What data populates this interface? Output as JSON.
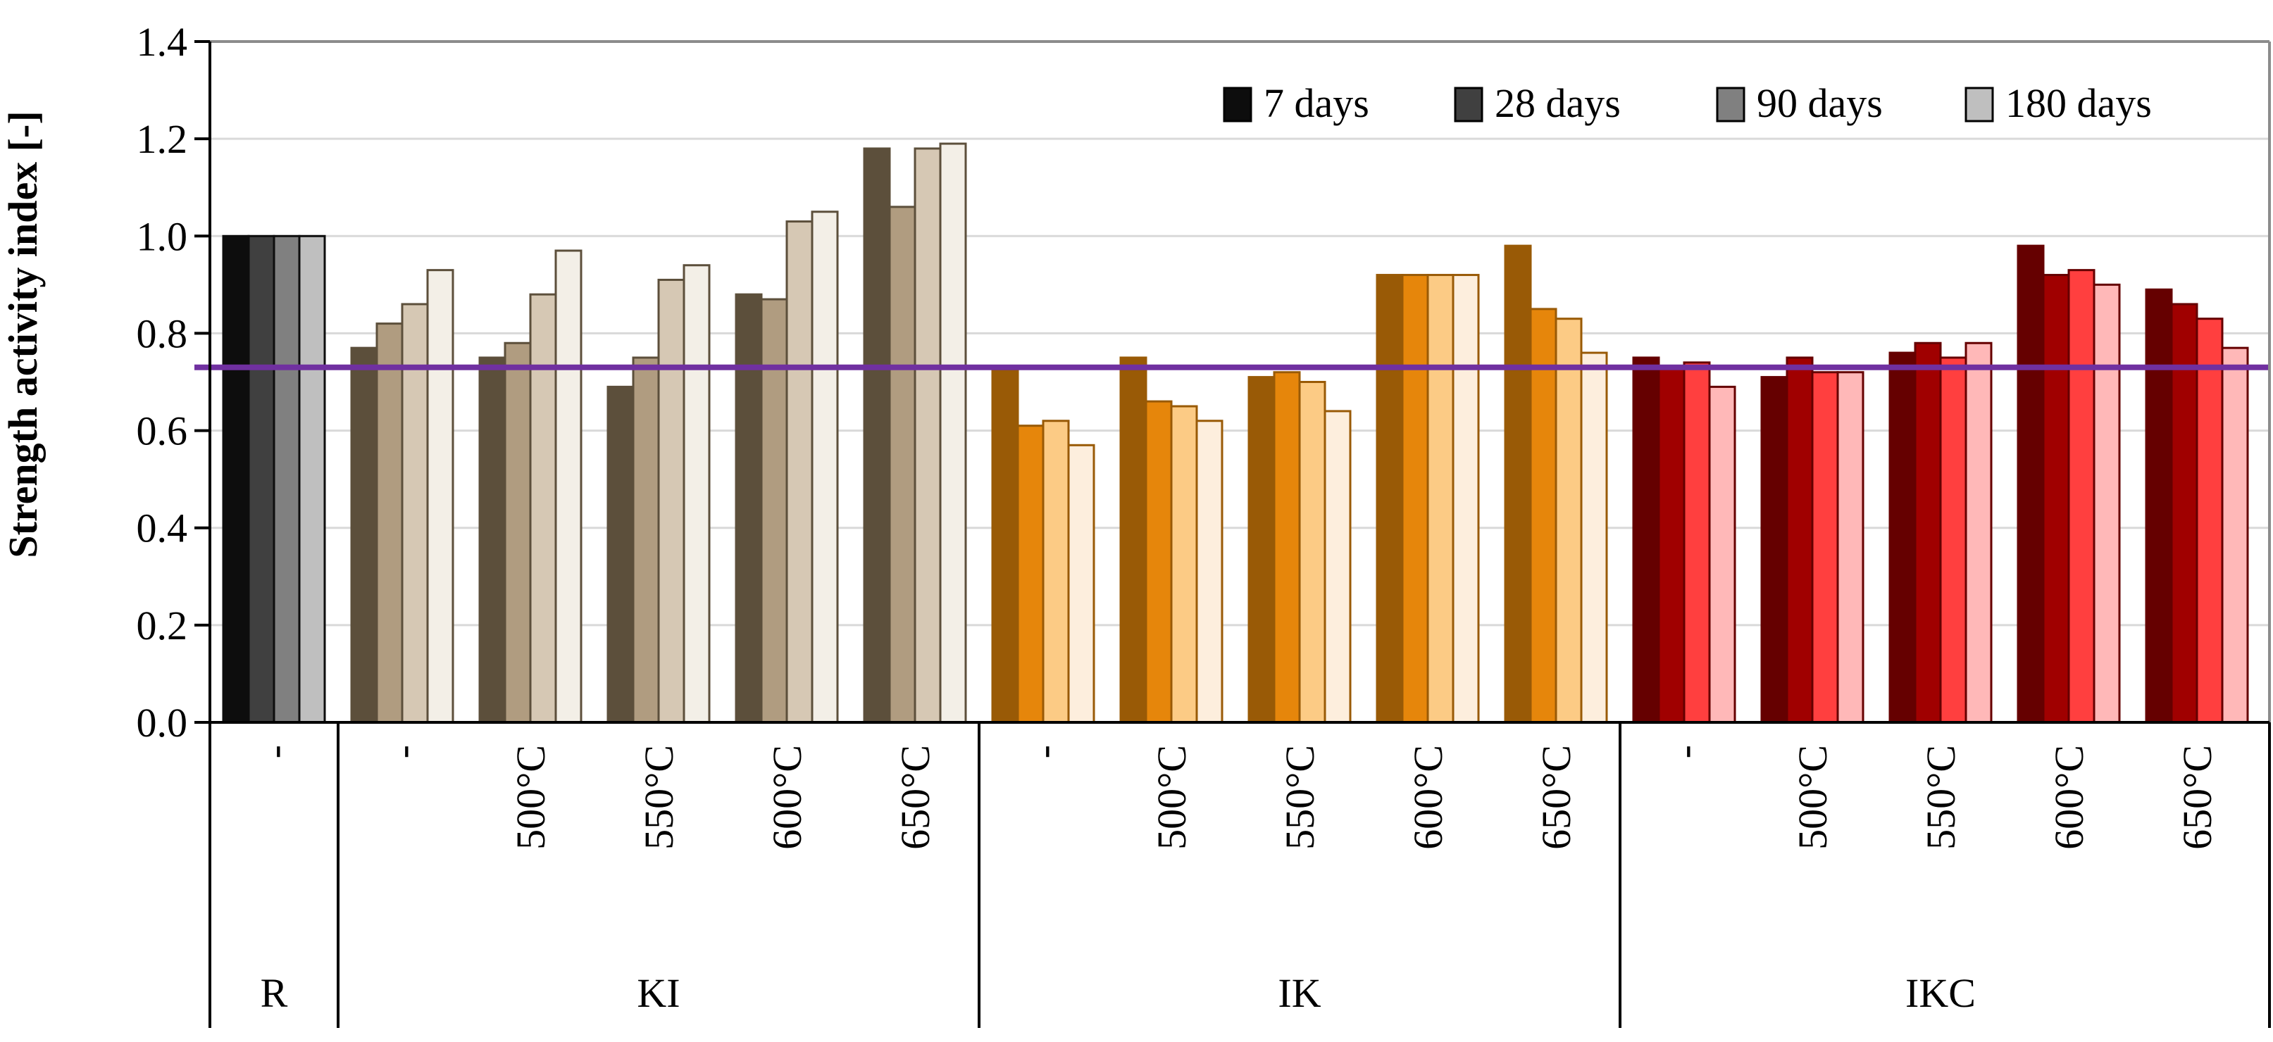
{
  "chart_data": {
    "type": "bar",
    "title": "",
    "ylabel": "Strength activity index [-]",
    "xlabel": "",
    "ylim": [
      0,
      1.4
    ],
    "yticks": [
      "0.0",
      "0.2",
      "0.4",
      "0.6",
      "0.8",
      "1.0",
      "1.2",
      "1.4"
    ],
    "ytick_values": [
      0,
      0.2,
      0.4,
      0.6,
      0.8,
      1.0,
      1.2,
      1.4
    ],
    "grid": true,
    "legend_position": "top-right",
    "series_names": [
      "7 days",
      "28 days",
      "90 days",
      "180 days"
    ],
    "legend_colors": [
      "#0d0d0d",
      "#404040",
      "#808080",
      "#bfbfbf"
    ],
    "reference_line": {
      "value": 0.73,
      "color": "#7030a0"
    },
    "groups": [
      {
        "name": "R",
        "colors": [
          "#0d0d0d",
          "#404040",
          "#808080",
          "#bfbfbf"
        ],
        "categories": [
          {
            "label": "-",
            "values": [
              1.0,
              1.0,
              1.0,
              1.0
            ]
          }
        ]
      },
      {
        "name": "KI",
        "colors": [
          "#5c4f3b",
          "#b09c80",
          "#d6c8b4",
          "#f3efe7"
        ],
        "categories": [
          {
            "label": "-",
            "values": [
              0.77,
              0.82,
              0.86,
              0.93
            ]
          },
          {
            "label": "500°C",
            "values": [
              0.75,
              0.78,
              0.88,
              0.97
            ]
          },
          {
            "label": "550°C",
            "values": [
              0.69,
              0.75,
              0.91,
              0.94
            ]
          },
          {
            "label": "600°C",
            "values": [
              0.88,
              0.87,
              1.03,
              1.05
            ]
          },
          {
            "label": "650°C",
            "values": [
              1.18,
              1.06,
              1.18,
              1.19
            ]
          }
        ]
      },
      {
        "name": "IK",
        "colors": [
          "#995a06",
          "#e6860b",
          "#fccb85",
          "#fdeedd"
        ],
        "categories": [
          {
            "label": "-",
            "values": [
              0.73,
              0.61,
              0.62,
              0.57
            ]
          },
          {
            "label": "500°C",
            "values": [
              0.75,
              0.66,
              0.65,
              0.62
            ]
          },
          {
            "label": "550°C",
            "values": [
              0.71,
              0.72,
              0.7,
              0.64
            ]
          },
          {
            "label": "600°C",
            "values": [
              0.92,
              0.92,
              0.92,
              0.92
            ]
          },
          {
            "label": "650°C",
            "values": [
              0.98,
              0.85,
              0.83,
              0.76
            ]
          }
        ]
      },
      {
        "name": "IKC",
        "colors": [
          "#650000",
          "#a00000",
          "#ff3f3f",
          "#ffb8b8"
        ],
        "categories": [
          {
            "label": "-",
            "values": [
              0.75,
              0.73,
              0.74,
              0.69
            ]
          },
          {
            "label": "500°C",
            "values": [
              0.71,
              0.75,
              0.72,
              0.72
            ]
          },
          {
            "label": "550°C",
            "values": [
              0.76,
              0.78,
              0.75,
              0.78
            ]
          },
          {
            "label": "600°C",
            "values": [
              0.98,
              0.92,
              0.93,
              0.9
            ]
          },
          {
            "label": "650°C",
            "values": [
              0.89,
              0.86,
              0.83,
              0.77
            ]
          }
        ]
      }
    ]
  }
}
